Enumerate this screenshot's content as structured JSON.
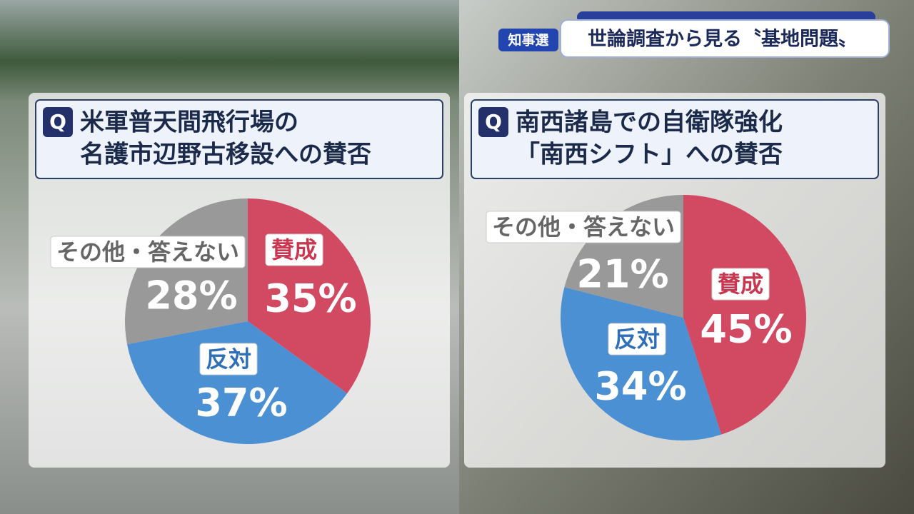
{
  "header": {
    "tag": "知事選",
    "title": "世論調査から見る〝基地問題〟"
  },
  "chart_data": [
    {
      "type": "pie",
      "badge": "Q",
      "title": [
        "米軍普天間飛行場の",
        "名護市辺野古移設への賛否"
      ],
      "categories": [
        "賛成",
        "反対",
        "その他・答えない"
      ],
      "values": [
        35,
        37,
        28
      ],
      "value_labels": [
        "35%",
        "37%",
        "28%"
      ],
      "colors": [
        "#d24a62",
        "#4a90d2",
        "#999999"
      ]
    },
    {
      "type": "pie",
      "badge": "Q",
      "title": [
        "南西諸島での自衛隊強化",
        "「南西シフト」への賛否"
      ],
      "categories": [
        "賛成",
        "反対",
        "その他・答えない"
      ],
      "values": [
        45,
        34,
        21
      ],
      "value_labels": [
        "45%",
        "34%",
        "21%"
      ],
      "colors": [
        "#d24a62",
        "#4a90d2",
        "#999999"
      ]
    }
  ]
}
